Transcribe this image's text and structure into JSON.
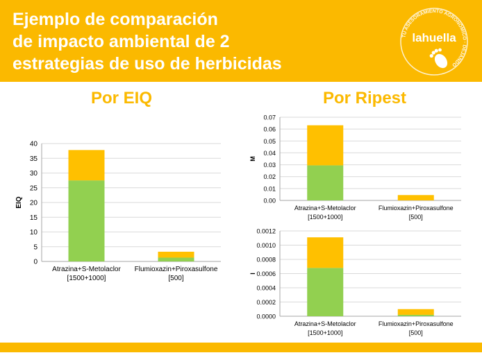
{
  "header": {
    "title_lines": [
      "Ejemplo de comparación",
      "de impacto ambiental de 2",
      "estrategias de uso de herbicidas"
    ],
    "logo_text": "lahuella",
    "logo_ring_text": "TU ASESORAMIENTO AGRONÓMICO · DEJANDO"
  },
  "sections": {
    "eiq_title": "Por EIQ",
    "ripest_title": "Por Ripest"
  },
  "colors": {
    "brand": "#fbb900",
    "green": "#92d050",
    "orange": "#ffc000"
  },
  "chart_data": [
    {
      "type": "bar",
      "stacked": true,
      "ylabel": "EIQ",
      "categories": [
        [
          "Atrazina+S-Metolaclor",
          "[1500+1000]"
        ],
        [
          "Flumioxazin+Piroxasulfone",
          "[500]"
        ]
      ],
      "series": [
        {
          "values": [
            27.5,
            1.3
          ],
          "color": "#92d050"
        },
        {
          "values": [
            10.3,
            2.0
          ],
          "color": "#ffc000"
        }
      ],
      "ylim": [
        0,
        40
      ],
      "yticks": [
        "0",
        "5",
        "10",
        "15",
        "20",
        "25",
        "30",
        "35",
        "40"
      ],
      "grid": true
    },
    {
      "type": "bar",
      "stacked": true,
      "ylabel": "M",
      "categories": [
        [
          "Atrazina+S-Metolaclor",
          "[1500+1000]"
        ],
        [
          "Flumioxazin+Piroxasulfone",
          "[500]"
        ]
      ],
      "series": [
        {
          "values": [
            0.0295,
            0.0
          ],
          "color": "#92d050"
        },
        {
          "values": [
            0.0337,
            0.0045
          ],
          "color": "#ffc000"
        }
      ],
      "ylim": [
        0,
        0.07
      ],
      "yticks": [
        "0.00",
        "0.01",
        "0.02",
        "0.03",
        "0.04",
        "0.05",
        "0.06",
        "0.07"
      ],
      "grid": true
    },
    {
      "type": "bar",
      "stacked": true,
      "ylabel": "I",
      "categories": [
        [
          "Atrazina+S-Metolaclor",
          "[1500+1000]"
        ],
        [
          "Flumioxazin+Piroxasulfone",
          "[500]"
        ]
      ],
      "series": [
        {
          "values": [
            0.00068,
            2e-05
          ],
          "color": "#92d050"
        },
        {
          "values": [
            0.00043,
            8e-05
          ],
          "color": "#ffc000"
        }
      ],
      "ylim": [
        0,
        0.0012
      ],
      "yticks": [
        "0.0000",
        "0.0002",
        "0.0004",
        "0.0006",
        "0.0008",
        "0.0010",
        "0.0012"
      ],
      "grid": true
    }
  ]
}
